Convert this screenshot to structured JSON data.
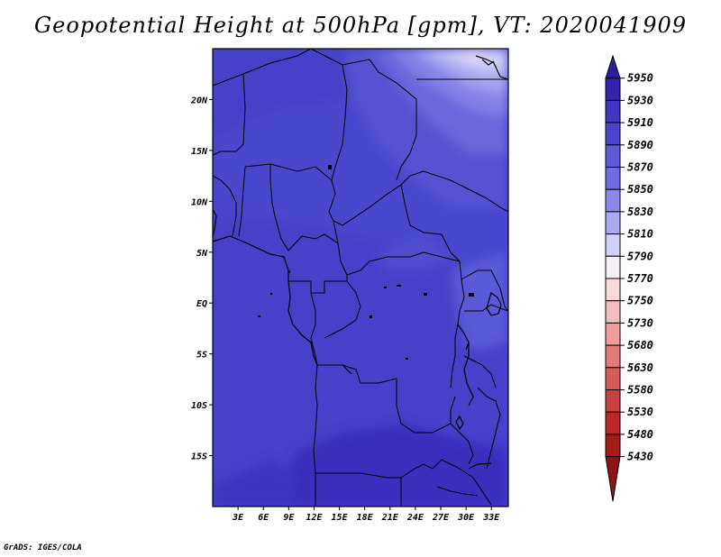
{
  "title": "Geopotential Height at 500hPa [gpm], VT: 2020041909",
  "credit": "GrADS: IGES/COLA",
  "map": {
    "lon_range": [
      0,
      35
    ],
    "lat_range": [
      -20,
      25
    ],
    "x_ticks": [
      "3E",
      "6E",
      "9E",
      "12E",
      "15E",
      "18E",
      "21E",
      "24E",
      "27E",
      "30E",
      "33E"
    ],
    "y_ticks": [
      "20N",
      "15N",
      "10N",
      "5N",
      "EQ",
      "5S",
      "10S",
      "15S"
    ]
  },
  "colorbar": {
    "levels": [
      "5950",
      "5930",
      "5910",
      "5890",
      "5870",
      "5850",
      "5830",
      "5810",
      "5790",
      "5770",
      "5750",
      "5730",
      "5680",
      "5630",
      "5580",
      "5530",
      "5480",
      "5430"
    ],
    "colors": [
      "#2a1fa0",
      "#3322b0",
      "#3d36c4",
      "#4a45d0",
      "#5a5ad8",
      "#6d6ee2",
      "#8989ea",
      "#a9a9f2",
      "#cfcff8",
      "#f4eef4",
      "#fbdada",
      "#f6bcbc",
      "#ee9c9c",
      "#e47a7a",
      "#d85a5a",
      "#cc3e3e",
      "#bb2626",
      "#a61a1a",
      "#8c1414"
    ]
  }
}
